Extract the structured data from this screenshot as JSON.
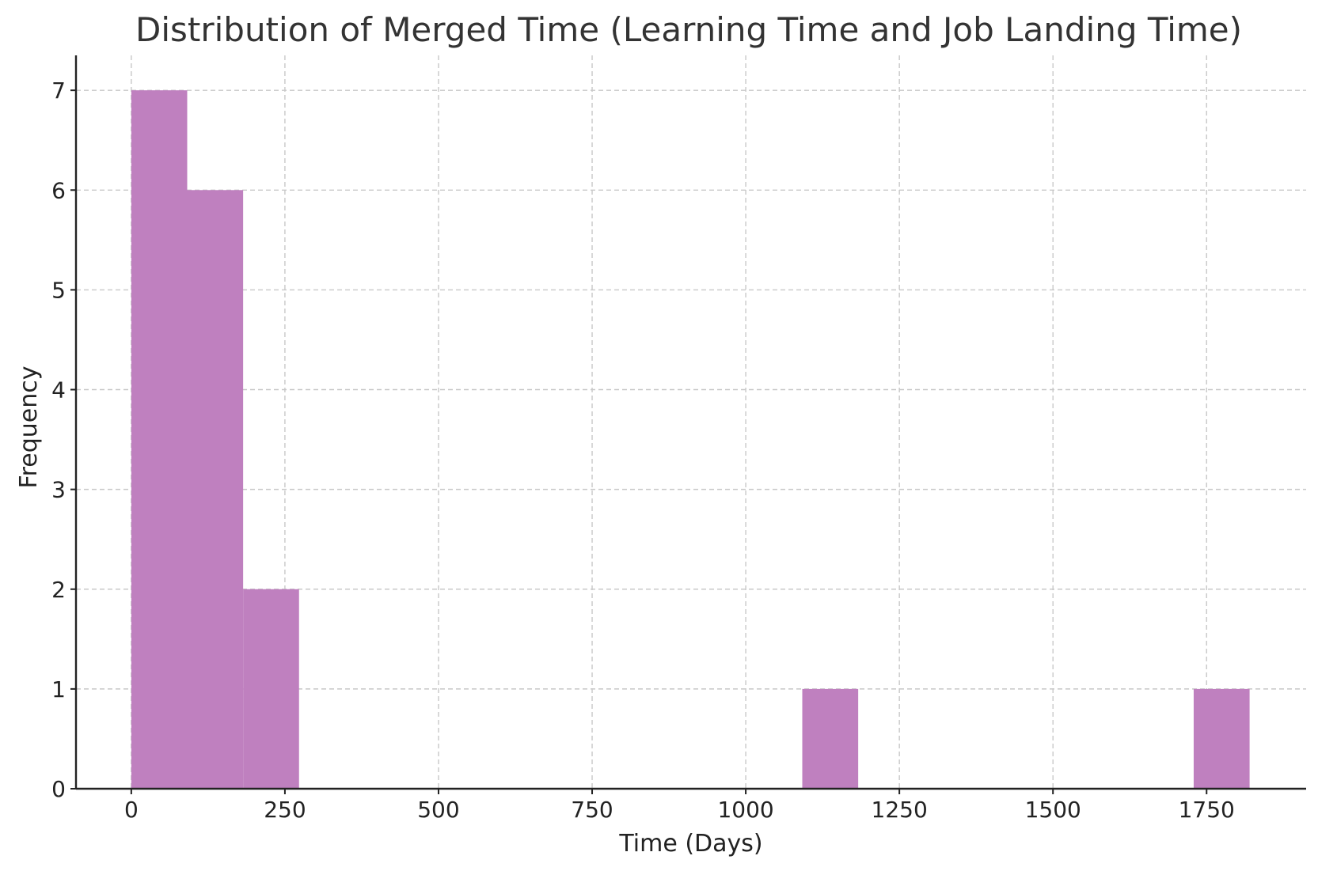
{
  "chart_data": {
    "type": "bar",
    "title": "Distribution of Merged Time (Learning Time and Job Landing Time)",
    "xlabel": "Time (Days)",
    "ylabel": "Frequency",
    "xlim": [
      -90,
      1912
    ],
    "ylim": [
      0,
      7.35
    ],
    "xticks": [
      0,
      250,
      500,
      750,
      1000,
      1250,
      1500,
      1750
    ],
    "yticks": [
      0,
      1,
      2,
      3,
      4,
      5,
      6,
      7
    ],
    "grid": true,
    "bar_color": "#bf80bf",
    "bins": [
      {
        "x0": 0,
        "x1": 91,
        "count": 7
      },
      {
        "x0": 91,
        "x1": 182,
        "count": 6
      },
      {
        "x0": 182,
        "x1": 273,
        "count": 2
      },
      {
        "x0": 273,
        "x1": 364,
        "count": 0
      },
      {
        "x0": 364,
        "x1": 455,
        "count": 0
      },
      {
        "x0": 455,
        "x1": 546,
        "count": 0
      },
      {
        "x0": 546,
        "x1": 637,
        "count": 0
      },
      {
        "x0": 637,
        "x1": 728,
        "count": 0
      },
      {
        "x0": 728,
        "x1": 819,
        "count": 0
      },
      {
        "x0": 819,
        "x1": 910,
        "count": 0
      },
      {
        "x0": 910,
        "x1": 1001,
        "count": 0
      },
      {
        "x0": 1001,
        "x1": 1092,
        "count": 0
      },
      {
        "x0": 1092,
        "x1": 1183,
        "count": 1
      },
      {
        "x0": 1183,
        "x1": 1274,
        "count": 0
      },
      {
        "x0": 1274,
        "x1": 1365,
        "count": 0
      },
      {
        "x0": 1365,
        "x1": 1456,
        "count": 0
      },
      {
        "x0": 1456,
        "x1": 1547,
        "count": 0
      },
      {
        "x0": 1547,
        "x1": 1638,
        "count": 0
      },
      {
        "x0": 1638,
        "x1": 1729,
        "count": 0
      },
      {
        "x0": 1729,
        "x1": 1820,
        "count": 1
      }
    ]
  }
}
